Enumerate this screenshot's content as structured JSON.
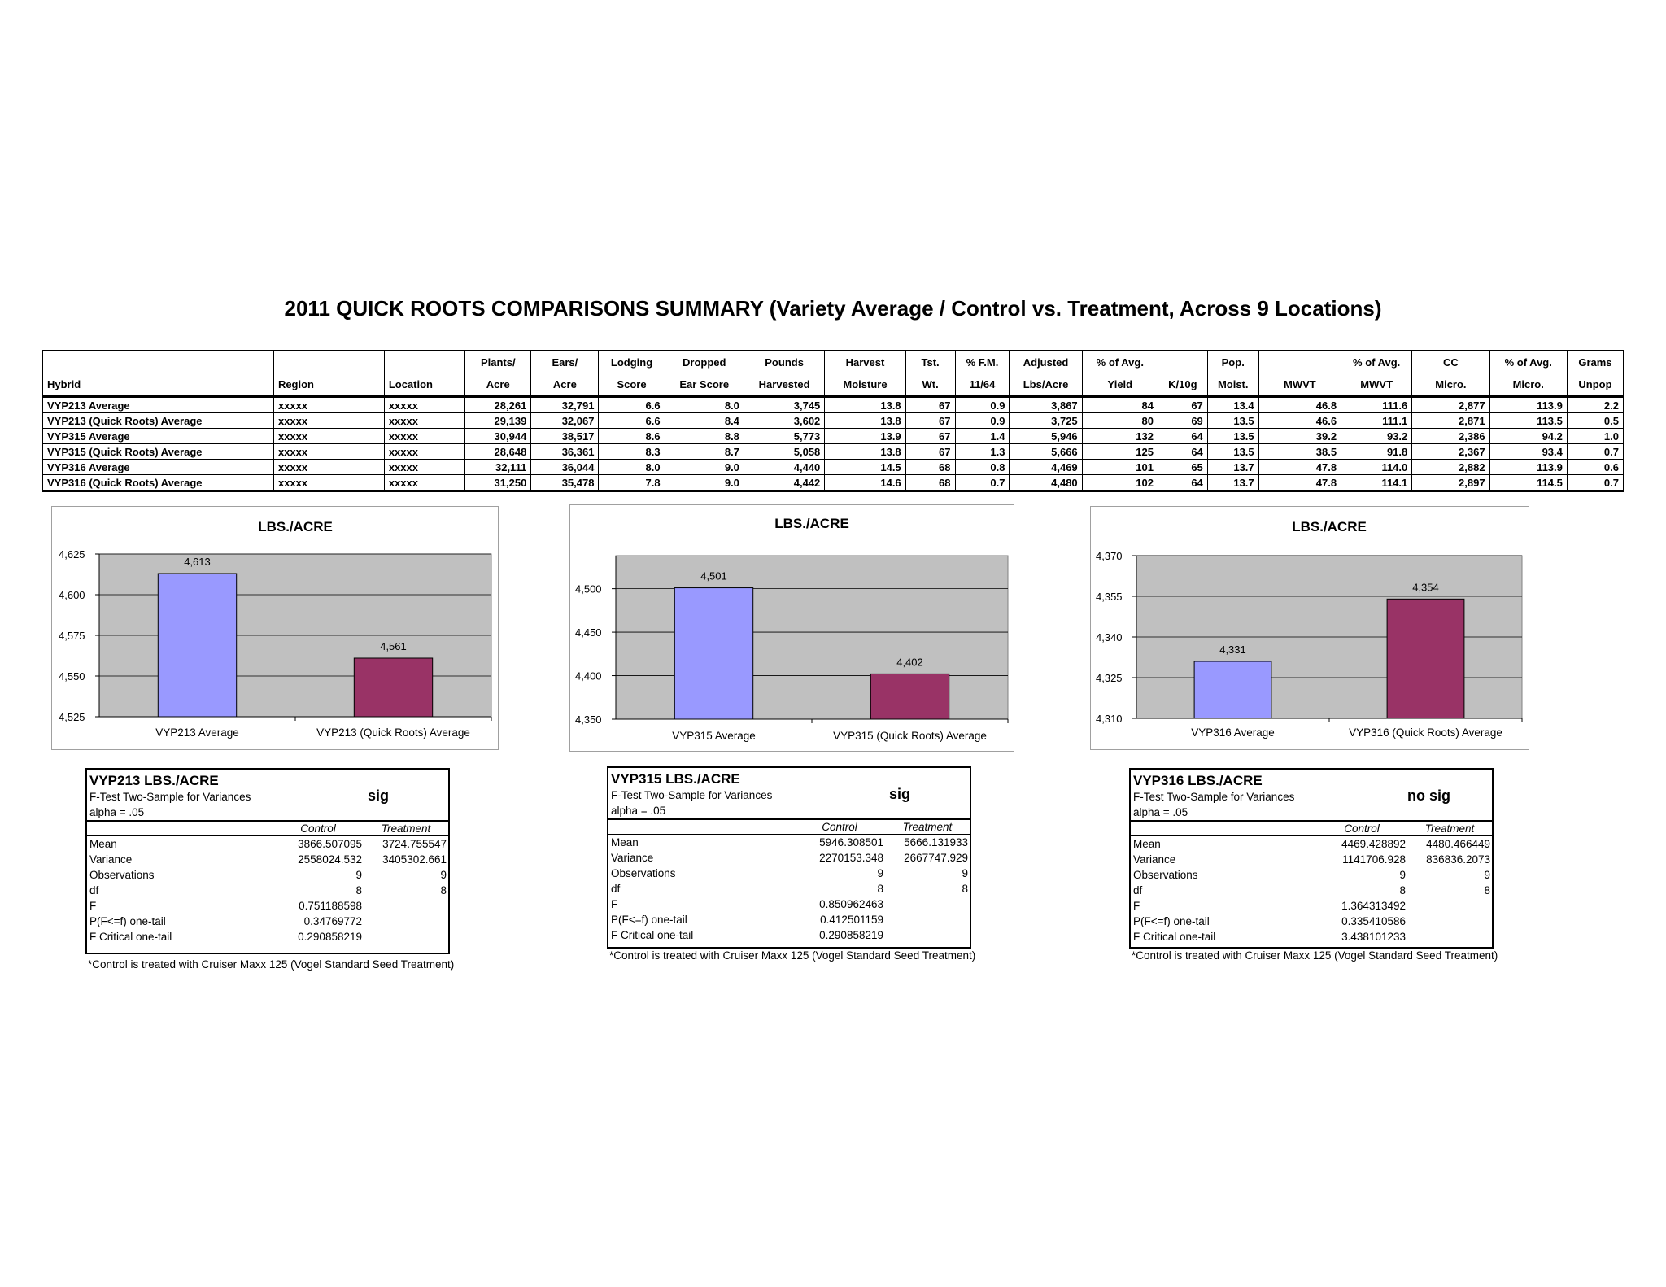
{
  "title": "2011 QUICK ROOTS COMPARISONS SUMMARY (Variety Average / Control vs. Treatment, Across 9 Locations)",
  "table": {
    "header_top": [
      "",
      "",
      "",
      "Plants/",
      "Ears/",
      "Lodging",
      "Dropped",
      "Pounds",
      "Harvest",
      "Tst.",
      "% F.M.",
      "Adjusted",
      "% of Avg.",
      "",
      "Pop.",
      "",
      "% of Avg.",
      "CC",
      "% of Avg.",
      "Grams"
    ],
    "header_bottom": [
      "Hybrid",
      "Region",
      "Location",
      "Acre",
      "Acre",
      "Score",
      "Ear Score",
      "Harvested",
      "Moisture",
      "Wt.",
      "11/64",
      "Lbs/Acre",
      "Yield",
      "K/10g",
      "Moist.",
      "MWVT",
      "MWVT",
      "Micro.",
      "Micro.",
      "Unpop"
    ],
    "rows": [
      [
        "VYP213 Average",
        "xxxxx",
        "xxxxx",
        "28,261",
        "32,791",
        "6.6",
        "8.0",
        "3,745",
        "13.8",
        "67",
        "0.9",
        "3,867",
        "84",
        "67",
        "13.4",
        "46.8",
        "111.6",
        "2,877",
        "113.9",
        "2.2"
      ],
      [
        "VYP213 (Quick Roots) Average",
        "xxxxx",
        "xxxxx",
        "29,139",
        "32,067",
        "6.6",
        "8.4",
        "3,602",
        "13.8",
        "67",
        "0.9",
        "3,725",
        "80",
        "69",
        "13.5",
        "46.6",
        "111.1",
        "2,871",
        "113.5",
        "0.5"
      ],
      [
        "VYP315 Average",
        "xxxxx",
        "xxxxx",
        "30,944",
        "38,517",
        "8.6",
        "8.8",
        "5,773",
        "13.9",
        "67",
        "1.4",
        "5,946",
        "132",
        "64",
        "13.5",
        "39.2",
        "93.2",
        "2,386",
        "94.2",
        "1.0"
      ],
      [
        "VYP315 (Quick Roots) Average",
        "xxxxx",
        "xxxxx",
        "28,648",
        "36,361",
        "8.3",
        "8.7",
        "5,058",
        "13.8",
        "67",
        "1.3",
        "5,666",
        "125",
        "64",
        "13.5",
        "38.5",
        "91.8",
        "2,367",
        "93.4",
        "0.7"
      ],
      [
        "VYP316 Average",
        "xxxxx",
        "xxxxx",
        "32,111",
        "36,044",
        "8.0",
        "9.0",
        "4,440",
        "14.5",
        "68",
        "0.8",
        "4,469",
        "101",
        "65",
        "13.7",
        "47.8",
        "114.0",
        "2,882",
        "113.9",
        "0.6"
      ],
      [
        "VYP316 (Quick Roots) Average",
        "xxxxx",
        "xxxxx",
        "31,250",
        "35,478",
        "7.8",
        "9.0",
        "4,442",
        "14.6",
        "68",
        "0.7",
        "4,480",
        "102",
        "64",
        "13.7",
        "47.8",
        "114.1",
        "2,897",
        "114.5",
        "0.7"
      ]
    ]
  },
  "chart_data": [
    {
      "type": "bar",
      "title": "LBS./ACRE",
      "categories": [
        "VYP213 Average",
        "VYP213 (Quick Roots) Average"
      ],
      "values": [
        4613,
        4561
      ],
      "value_labels": [
        "4,613",
        "4,561"
      ],
      "ylim": [
        4525,
        4625
      ],
      "yticks": [
        "4,525",
        "4,550",
        "4,575",
        "4,600",
        "4,625"
      ],
      "bar_colors": [
        "#9999ff",
        "#993366"
      ],
      "plot_bg": "#c0c0c0",
      "grid": true,
      "legend": false
    },
    {
      "type": "bar",
      "title": "LBS./ACRE",
      "categories": [
        "VYP315 Average",
        "VYP315 (Quick Roots) Average"
      ],
      "values": [
        4501,
        4402
      ],
      "value_labels": [
        "4,501",
        "4,402"
      ],
      "ylim": [
        4350,
        4538
      ],
      "yticks": [
        "4,350",
        "4,400",
        "4,450",
        "4,500"
      ],
      "bar_colors": [
        "#9999ff",
        "#993366"
      ],
      "plot_bg": "#c0c0c0",
      "grid": true,
      "legend": false
    },
    {
      "type": "bar",
      "title": "LBS./ACRE",
      "categories": [
        "VYP316 Average",
        "VYP316 (Quick Roots) Average"
      ],
      "values": [
        4331,
        4354
      ],
      "value_labels": [
        "4,331",
        "4,354"
      ],
      "ylim": [
        4310,
        4370
      ],
      "yticks": [
        "4,310",
        "4,325",
        "4,340",
        "4,355",
        "4,370"
      ],
      "bar_colors": [
        "#9999ff",
        "#993366"
      ],
      "plot_bg": "#c0c0c0",
      "grid": true,
      "legend": false
    }
  ],
  "ftests": [
    {
      "title": "VYP213 LBS./ACRE",
      "subtitle": "F-Test Two-Sample for Variances",
      "sig": "sig",
      "alpha": "alpha = .05",
      "col_control": "Control",
      "col_treatment": "Treatment",
      "rows": [
        {
          "label": "Mean",
          "control": "3866.507095",
          "treatment": "3724.755547"
        },
        {
          "label": "Variance",
          "control": "2558024.532",
          "treatment": "3405302.661"
        },
        {
          "label": "Observations",
          "control": "9",
          "treatment": "9"
        },
        {
          "label": "df",
          "control": "8",
          "treatment": "8"
        },
        {
          "label": "F",
          "control": "0.751188598",
          "treatment": ""
        },
        {
          "label": "P(F<=f) one-tail",
          "control": "0.34769772",
          "treatment": ""
        },
        {
          "label": "F Critical one-tail",
          "control": "0.290858219",
          "treatment": ""
        }
      ],
      "footnote": "*Control is treated with Cruiser Maxx 125 (Vogel Standard Seed Treatment)"
    },
    {
      "title": "VYP315 LBS./ACRE",
      "subtitle": "F-Test Two-Sample for Variances",
      "sig": "sig",
      "alpha": "alpha = .05",
      "col_control": "Control",
      "col_treatment": "Treatment",
      "rows": [
        {
          "label": "Mean",
          "control": "5946.308501",
          "treatment": "5666.131933"
        },
        {
          "label": "Variance",
          "control": "2270153.348",
          "treatment": "2667747.929"
        },
        {
          "label": "Observations",
          "control": "9",
          "treatment": "9"
        },
        {
          "label": "df",
          "control": "8",
          "treatment": "8"
        },
        {
          "label": "F",
          "control": "0.850962463",
          "treatment": ""
        },
        {
          "label": "P(F<=f) one-tail",
          "control": "0.412501159",
          "treatment": ""
        },
        {
          "label": "F Critical one-tail",
          "control": "0.290858219",
          "treatment": ""
        }
      ],
      "footnote": "*Control is treated with Cruiser Maxx 125 (Vogel Standard Seed Treatment)"
    },
    {
      "title": "VYP316 LBS./ACRE",
      "subtitle": "F-Test Two-Sample for Variances",
      "sig": "no sig",
      "alpha": "alpha = .05",
      "col_control": "Control",
      "col_treatment": "Treatment",
      "rows": [
        {
          "label": "Mean",
          "control": "4469.428892",
          "treatment": "4480.466449"
        },
        {
          "label": "Variance",
          "control": "1141706.928",
          "treatment": "836836.2073"
        },
        {
          "label": "Observations",
          "control": "9",
          "treatment": "9"
        },
        {
          "label": "df",
          "control": "8",
          "treatment": "8"
        },
        {
          "label": "F",
          "control": "1.364313492",
          "treatment": ""
        },
        {
          "label": "P(F<=f) one-tail",
          "control": "0.335410586",
          "treatment": ""
        },
        {
          "label": "F Critical one-tail",
          "control": "3.438101233",
          "treatment": ""
        }
      ],
      "footnote": "*Control is treated with Cruiser Maxx 125 (Vogel Standard Seed Treatment)"
    }
  ]
}
